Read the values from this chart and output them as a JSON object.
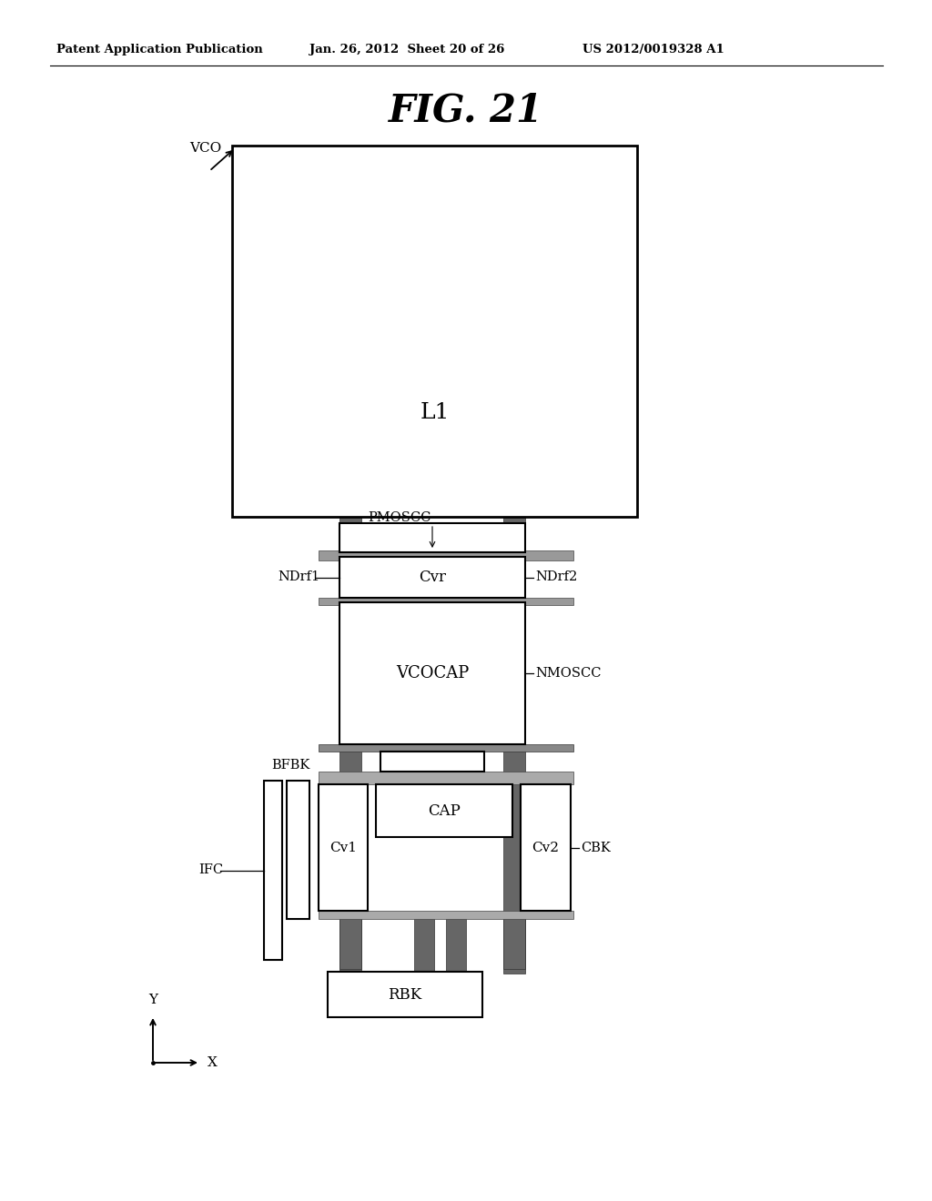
{
  "header_left": "Patent Application Publication",
  "header_center": "Jan. 26, 2012  Sheet 20 of 26",
  "header_right": "US 2012/0019328 A1",
  "bg_color": "#ffffff",
  "fig_label": "FIG. 21",
  "rail_color": "#666666",
  "labels": {
    "vco": "VCO",
    "l1": "L1",
    "pmoscc": "PMOSCC",
    "ndrf1": "NDrf1",
    "ndrf2": "NDrf2",
    "cvr": "Cvr",
    "vcocap": "VCOCAP",
    "nmoscc": "NMOSCC",
    "bfbk": "BFBK",
    "ifc": "IFC",
    "cap": "CAP",
    "cv1": "Cv1",
    "cv2": "Cv2",
    "cbk": "CBK",
    "rbk": "RBK",
    "y_axis": "Y",
    "x_axis": "X"
  }
}
